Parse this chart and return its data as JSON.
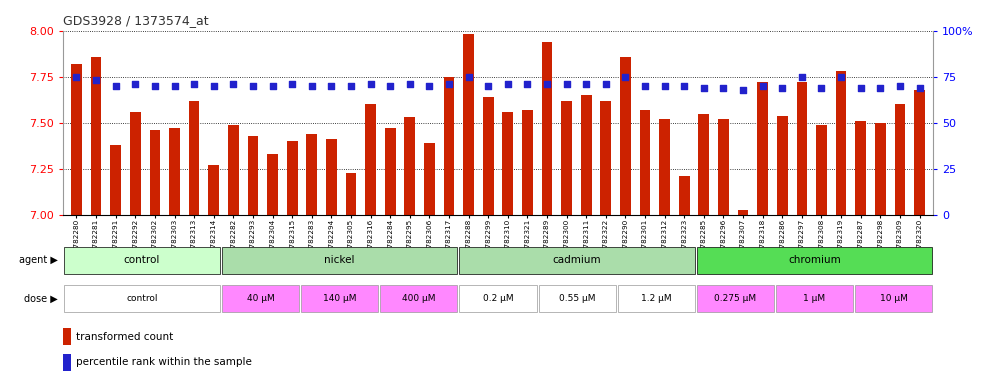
{
  "title": "GDS3928 / 1373574_at",
  "samples": [
    "GSM782280",
    "GSM782281",
    "GSM782291",
    "GSM782292",
    "GSM782302",
    "GSM782303",
    "GSM782313",
    "GSM782314",
    "GSM782282",
    "GSM782293",
    "GSM782304",
    "GSM782315",
    "GSM782283",
    "GSM782294",
    "GSM782305",
    "GSM782316",
    "GSM782284",
    "GSM782295",
    "GSM782306",
    "GSM782317",
    "GSM782288",
    "GSM782299",
    "GSM782310",
    "GSM782321",
    "GSM782289",
    "GSM782300",
    "GSM782311",
    "GSM782322",
    "GSM782290",
    "GSM782301",
    "GSM782312",
    "GSM782323",
    "GSM782285",
    "GSM782296",
    "GSM782307",
    "GSM782318",
    "GSM782286",
    "GSM782297",
    "GSM782308",
    "GSM782319",
    "GSM782287",
    "GSM782298",
    "GSM782309",
    "GSM782320"
  ],
  "bar_values": [
    7.82,
    7.86,
    7.38,
    7.56,
    7.46,
    7.47,
    7.62,
    7.27,
    7.49,
    7.43,
    7.33,
    7.4,
    7.44,
    7.41,
    7.23,
    7.6,
    7.47,
    7.53,
    7.39,
    7.75,
    7.98,
    7.64,
    7.56,
    7.57,
    7.94,
    7.62,
    7.65,
    7.62,
    7.86,
    7.57,
    7.52,
    7.21,
    7.55,
    7.52,
    7.03,
    7.72,
    7.54,
    7.72,
    7.49,
    7.78,
    7.51,
    7.5,
    7.6,
    7.68
  ],
  "percentile_values": [
    75,
    73,
    70,
    71,
    70,
    70,
    71,
    70,
    71,
    70,
    70,
    71,
    70,
    70,
    70,
    71,
    70,
    71,
    70,
    71,
    75,
    70,
    71,
    71,
    71,
    71,
    71,
    71,
    75,
    70,
    70,
    70,
    69,
    69,
    68,
    70,
    69,
    75,
    69,
    75,
    69,
    69,
    70,
    69
  ],
  "bar_color": "#CC2200",
  "percentile_color": "#2222CC",
  "ylim": [
    7.0,
    8.0
  ],
  "ylim_right": [
    0,
    100
  ],
  "yticks_left": [
    7.0,
    7.25,
    7.5,
    7.75,
    8.0
  ],
  "yticks_right": [
    0,
    25,
    50,
    75,
    100
  ],
  "agent_groups": [
    {
      "label": "control",
      "start": 0,
      "end": 8,
      "color": "#CCFFCC"
    },
    {
      "label": "nickel",
      "start": 8,
      "end": 20,
      "color": "#AADDAA"
    },
    {
      "label": "cadmium",
      "start": 20,
      "end": 32,
      "color": "#AADDAA"
    },
    {
      "label": "chromium",
      "start": 32,
      "end": 44,
      "color": "#55DD55"
    }
  ],
  "dose_groups": [
    {
      "label": "control",
      "start": 0,
      "end": 8,
      "color": "#FFFFFF"
    },
    {
      "label": "40 μM",
      "start": 8,
      "end": 12,
      "color": "#FF88FF"
    },
    {
      "label": "140 μM",
      "start": 12,
      "end": 16,
      "color": "#FF88FF"
    },
    {
      "label": "400 μM",
      "start": 16,
      "end": 20,
      "color": "#FF88FF"
    },
    {
      "label": "0.2 μM",
      "start": 20,
      "end": 24,
      "color": "#FFFFFF"
    },
    {
      "label": "0.55 μM",
      "start": 24,
      "end": 28,
      "color": "#FFFFFF"
    },
    {
      "label": "1.2 μM",
      "start": 28,
      "end": 32,
      "color": "#FFFFFF"
    },
    {
      "label": "0.275 μM",
      "start": 32,
      "end": 36,
      "color": "#FF88FF"
    },
    {
      "label": "1 μM",
      "start": 36,
      "end": 40,
      "color": "#FF88FF"
    },
    {
      "label": "10 μM",
      "start": 40,
      "end": 44,
      "color": "#FF88FF"
    }
  ]
}
